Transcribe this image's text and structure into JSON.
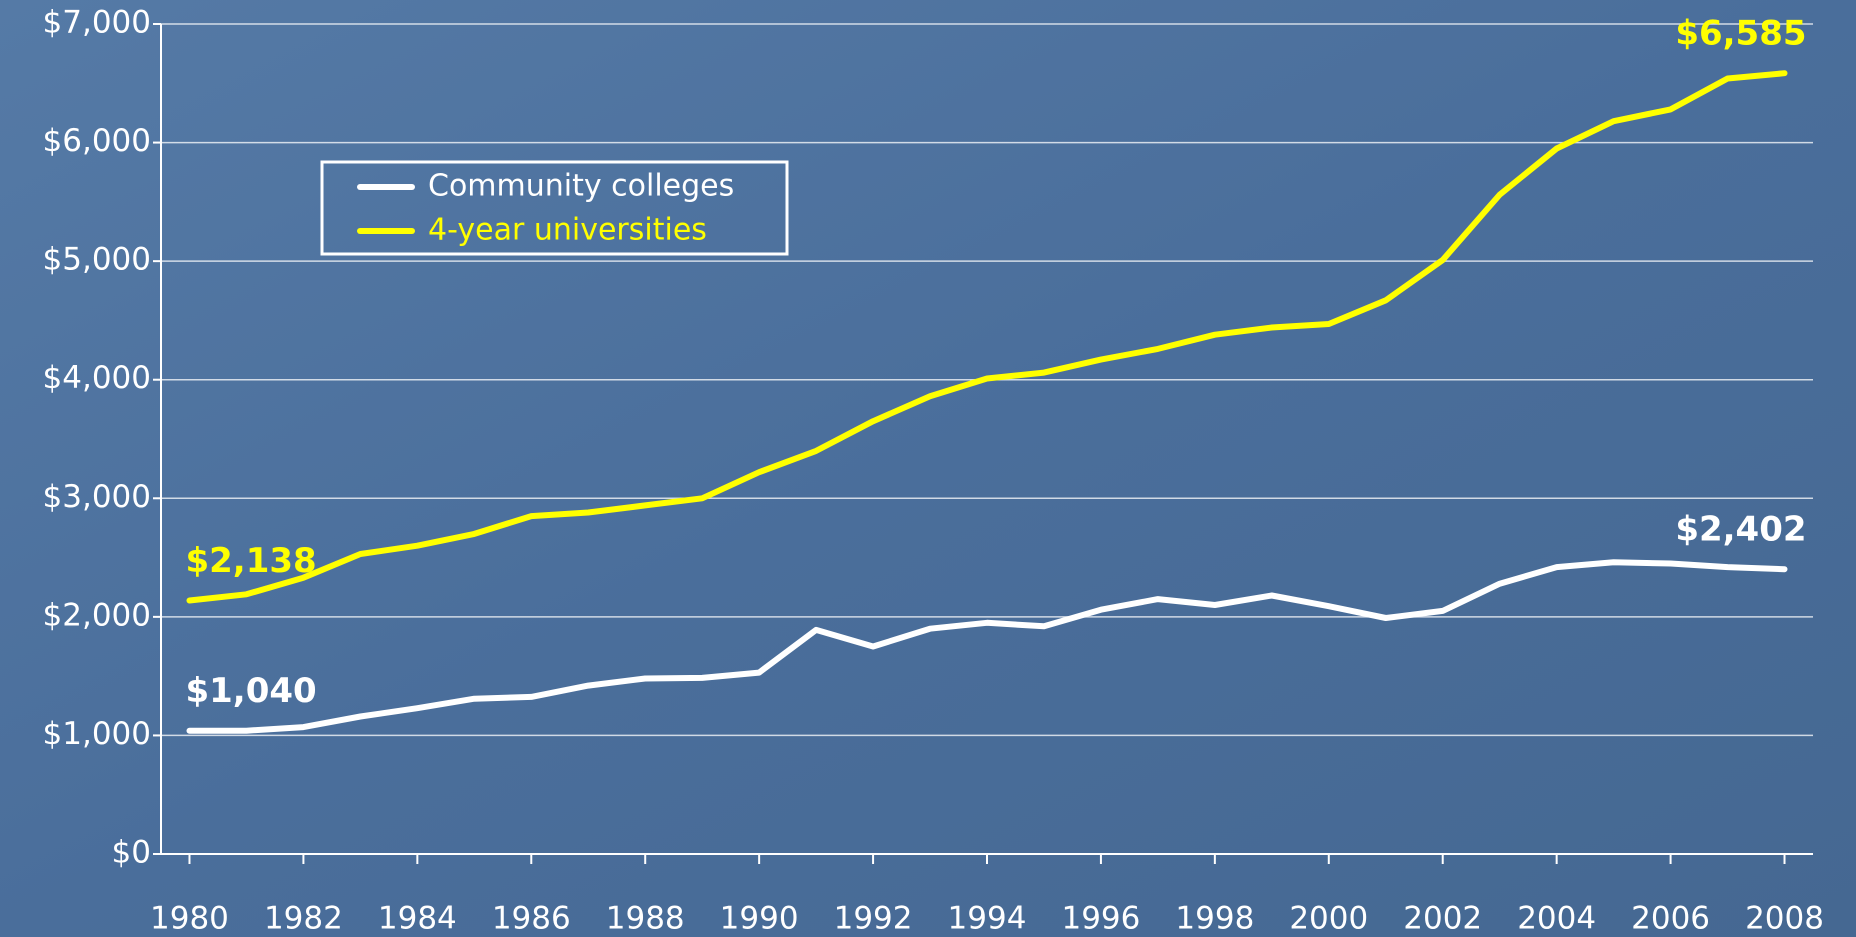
{
  "chart_data": {
    "type": "line",
    "x": [
      1980,
      1981,
      1982,
      1983,
      1984,
      1985,
      1986,
      1987,
      1988,
      1989,
      1990,
      1991,
      1992,
      1993,
      1994,
      1995,
      1996,
      1997,
      1998,
      1999,
      2000,
      2001,
      2002,
      2003,
      2004,
      2005,
      2006,
      2007,
      2008
    ],
    "series": [
      {
        "name": "Community colleges",
        "color": "#ffffff",
        "values": [
          1040,
          1040,
          1070,
          1160,
          1230,
          1310,
          1325,
          1420,
          1480,
          1485,
          1530,
          1890,
          1750,
          1900,
          1950,
          1920,
          2060,
          2150,
          2100,
          2180,
          2090,
          1990,
          2050,
          2280,
          2420,
          2460,
          2450,
          2420,
          2402
        ],
        "value_labels": [
          "$1,040",
          null,
          null,
          null,
          null,
          null,
          null,
          null,
          null,
          null,
          null,
          null,
          null,
          null,
          null,
          null,
          null,
          null,
          null,
          null,
          null,
          null,
          null,
          null,
          null,
          null,
          null,
          null,
          "$2,402"
        ]
      },
      {
        "name": "4-year universities",
        "color": "#ffff00",
        "values": [
          2138,
          2190,
          2330,
          2530,
          2600,
          2700,
          2850,
          2880,
          2940,
          3000,
          3220,
          3400,
          3650,
          3860,
          4010,
          4060,
          4170,
          4260,
          4380,
          4440,
          4470,
          4670,
          5010,
          5560,
          5950,
          6180,
          6280,
          6540,
          6585
        ],
        "value_labels": [
          "$2,138",
          null,
          null,
          null,
          null,
          null,
          null,
          null,
          null,
          null,
          null,
          null,
          null,
          null,
          null,
          null,
          null,
          null,
          null,
          null,
          null,
          null,
          null,
          null,
          null,
          null,
          null,
          null,
          "$6,585"
        ]
      }
    ],
    "xlim": [
      1979.5,
      2008.5
    ],
    "xticks": [
      1980,
      1982,
      1984,
      1986,
      1988,
      1990,
      1992,
      1994,
      1996,
      1998,
      2000,
      2002,
      2004,
      2006,
      2008
    ],
    "ylim": [
      0,
      7000
    ],
    "yticks": [
      {
        "value": 0,
        "label": "$0"
      },
      {
        "value": 1000,
        "label": "$1,000"
      },
      {
        "value": 2000,
        "label": "$2,000"
      },
      {
        "value": 3000,
        "label": "$3,000"
      },
      {
        "value": 4000,
        "label": "$4,000"
      },
      {
        "value": 5000,
        "label": "$5,000"
      },
      {
        "value": 6000,
        "label": "$6,000"
      },
      {
        "value": 7000,
        "label": "$7,000"
      }
    ],
    "grid": true,
    "legend": "upper left"
  }
}
